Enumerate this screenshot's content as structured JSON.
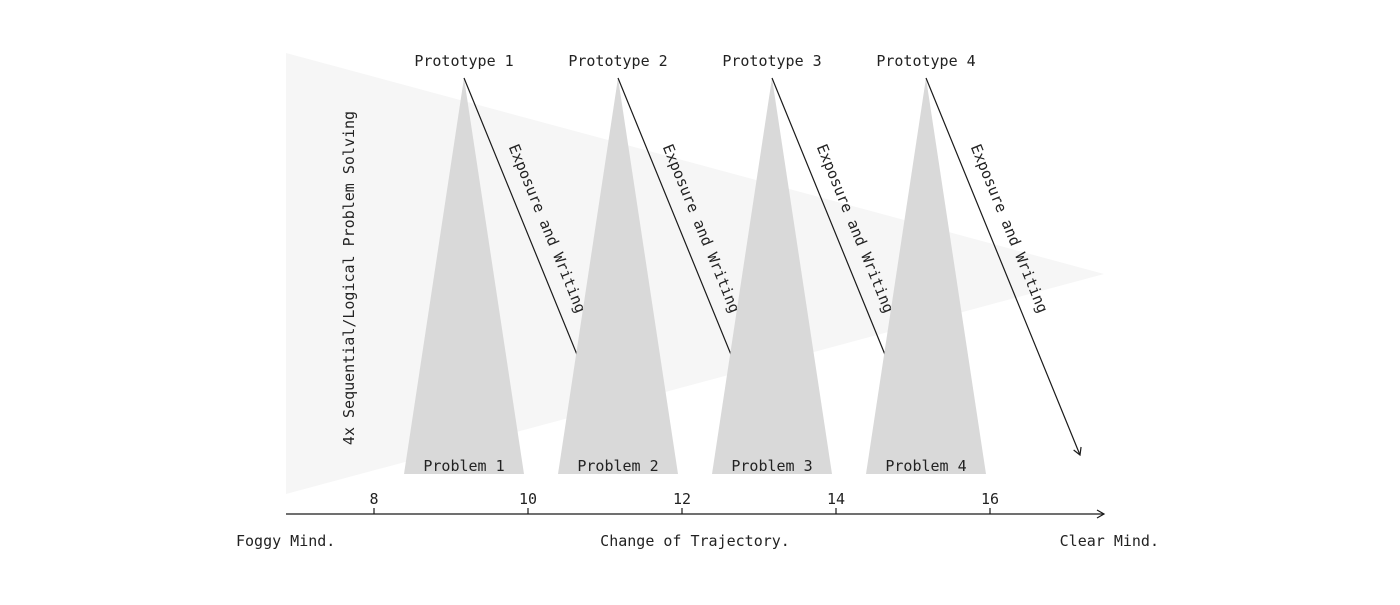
{
  "diagram": {
    "vertical_label": "4x Sequential/Logical Problem Solving",
    "cycles": [
      {
        "prototype": "Prototype 1",
        "problem": "Problem 1",
        "arrow_label": "Exposure and Writing"
      },
      {
        "prototype": "Prototype 2",
        "problem": "Problem 2",
        "arrow_label": "Exposure and Writing"
      },
      {
        "prototype": "Prototype 3",
        "problem": "Problem 3",
        "arrow_label": "Exposure and Writing"
      },
      {
        "prototype": "Prototype 4",
        "problem": "Problem 4",
        "arrow_label": "Exposure and Writing"
      }
    ],
    "axis": {
      "ticks": [
        "8",
        "10",
        "12",
        "14",
        "16"
      ]
    },
    "bottom_labels": {
      "left": "Foggy Mind.",
      "center": "Change of Trajectory.",
      "right": "Clear Mind."
    },
    "colors": {
      "background_wedge": "#f6f6f6",
      "triangle": "#d9d9d9",
      "ink": "#1a1a1a"
    }
  }
}
